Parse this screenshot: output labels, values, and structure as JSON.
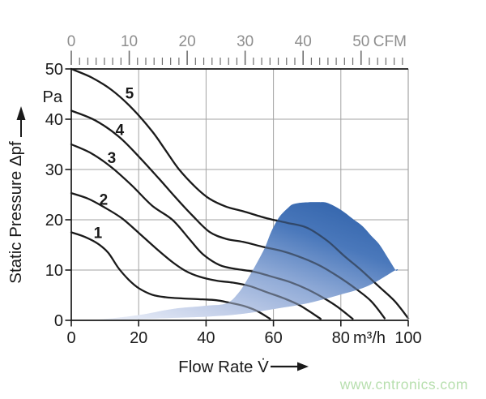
{
  "watermark": "www.cntronics.com",
  "chart_data": {
    "type": "line",
    "title": "",
    "x_axis": {
      "title": "Flow Rate V̇",
      "unit": "m³/h",
      "min": 0,
      "max": 100,
      "ticks": [
        0,
        20,
        40,
        60,
        80,
        100
      ]
    },
    "y_axis": {
      "title": "Static Pressure Δpf",
      "unit": "Pa",
      "min": 0,
      "max": 50,
      "ticks": [
        0,
        10,
        20,
        30,
        40,
        50
      ]
    },
    "top_axis": {
      "unit": "CFM",
      "major_labels": [
        "0",
        "10",
        "20",
        "30",
        "40",
        "50"
      ],
      "m3h_per_cfm": 1.72,
      "subdivisions_per_major": 7,
      "minor_tick_count": 41
    },
    "grid": true,
    "legend_position": "none",
    "series": [
      {
        "name": "1",
        "label_pos": [
          7.9,
          17.4
        ],
        "points": [
          [
            0,
            17.5
          ],
          [
            4,
            16.6
          ],
          [
            8,
            15.2
          ],
          [
            11,
            13.4
          ],
          [
            14,
            10.4
          ],
          [
            17,
            8.1
          ],
          [
            20,
            6.4
          ],
          [
            24,
            5.1
          ],
          [
            28,
            4.6
          ],
          [
            33,
            4.35
          ],
          [
            38,
            4.2
          ],
          [
            43,
            4.0
          ],
          [
            47,
            3.5
          ],
          [
            51,
            2.9
          ],
          [
            55,
            1.9
          ],
          [
            59,
            0.3
          ]
        ]
      },
      {
        "name": "2",
        "label_pos": [
          9.6,
          24.0
        ],
        "points": [
          [
            0,
            25.3
          ],
          [
            5,
            24.2
          ],
          [
            10,
            22.4
          ],
          [
            15,
            20.3
          ],
          [
            20,
            17.4
          ],
          [
            25,
            14.4
          ],
          [
            30,
            11.6
          ],
          [
            34,
            9.8
          ],
          [
            38,
            8.7
          ],
          [
            43,
            7.9
          ],
          [
            48,
            7.5
          ],
          [
            53,
            6.8
          ],
          [
            58,
            5.6
          ],
          [
            63,
            4.4
          ],
          [
            68,
            2.9
          ],
          [
            74,
            0.3
          ]
        ]
      },
      {
        "name": "3",
        "label_pos": [
          12.0,
          32.3
        ],
        "points": [
          [
            0,
            35
          ],
          [
            6,
            33.2
          ],
          [
            12,
            30.4
          ],
          [
            18,
            26.8
          ],
          [
            24,
            22.8
          ],
          [
            30,
            20.0
          ],
          [
            35,
            16.2
          ],
          [
            39,
            13.2
          ],
          [
            44,
            11.0
          ],
          [
            49,
            10.2
          ],
          [
            54,
            9.7
          ],
          [
            60,
            8.6
          ],
          [
            65,
            7.6
          ],
          [
            70,
            6.2
          ],
          [
            75,
            4.4
          ],
          [
            79,
            2.7
          ],
          [
            83.5,
            0.3
          ]
        ]
      },
      {
        "name": "4",
        "label_pos": [
          14.4,
          37.9
        ],
        "points": [
          [
            0,
            41.7
          ],
          [
            7,
            39.8
          ],
          [
            14,
            36.6
          ],
          [
            20,
            32.6
          ],
          [
            26,
            28.2
          ],
          [
            31,
            24.4
          ],
          [
            36,
            20.8
          ],
          [
            41,
            17.6
          ],
          [
            46,
            16.2
          ],
          [
            51,
            15.6
          ],
          [
            57,
            14.6
          ],
          [
            63,
            13.7
          ],
          [
            69,
            12.3
          ],
          [
            74,
            10.8
          ],
          [
            79,
            8.8
          ],
          [
            84,
            6.5
          ],
          [
            89,
            3.8
          ],
          [
            93,
            0.4
          ]
        ]
      },
      {
        "name": "5",
        "label_pos": [
          17.3,
          45.2
        ],
        "points": [
          [
            0,
            50
          ],
          [
            6,
            48.3
          ],
          [
            12,
            45.8
          ],
          [
            18,
            42.2
          ],
          [
            24,
            37.6
          ],
          [
            28,
            33.8
          ],
          [
            32,
            30.0
          ],
          [
            37,
            26.4
          ],
          [
            41,
            24.2
          ],
          [
            46,
            22.6
          ],
          [
            51,
            21.7
          ],
          [
            58,
            20.3
          ],
          [
            64,
            19.4
          ],
          [
            70,
            18.4
          ],
          [
            76,
            15.8
          ],
          [
            81,
            12.8
          ],
          [
            86,
            10.0
          ],
          [
            91,
            6.9
          ],
          [
            96,
            3.8
          ],
          [
            100,
            0.4
          ]
        ]
      }
    ],
    "operating_region": {
      "description": "shaded operating area, light at lower-left tail to dark blue at upper right",
      "points": [
        [
          7.7,
          0.1
        ],
        [
          19.7,
          1.0
        ],
        [
          30.5,
          2.3
        ],
        [
          40.1,
          2.9
        ],
        [
          46.2,
          3.4
        ],
        [
          49.8,
          5.6
        ],
        [
          52.6,
          8.5
        ],
        [
          55.0,
          11.3
        ],
        [
          57.5,
          14.5
        ],
        [
          59.4,
          17.7
        ],
        [
          61.8,
          20.6
        ],
        [
          64.4,
          22.4
        ],
        [
          65.9,
          23.1
        ],
        [
          68.5,
          23.4
        ],
        [
          71.4,
          23.5
        ],
        [
          73.6,
          23.5
        ],
        [
          75.7,
          23.4
        ],
        [
          78.4,
          22.6
        ],
        [
          81.0,
          21.5
        ],
        [
          83.9,
          20.0
        ],
        [
          86.5,
          18.7
        ],
        [
          88.9,
          16.9
        ],
        [
          91.3,
          15.2
        ],
        [
          93.5,
          12.9
        ],
        [
          96.2,
          10.0
        ],
        [
          96.2,
          10.0
        ],
        [
          88.2,
          6.9
        ],
        [
          80.3,
          5.2
        ],
        [
          70.2,
          3.4
        ],
        [
          60.6,
          2.3
        ],
        [
          51.0,
          1.3
        ],
        [
          42.1,
          0.8
        ],
        [
          30.5,
          0.5
        ],
        [
          19.7,
          0.24
        ],
        [
          7.7,
          0.1
        ]
      ]
    },
    "colors": {
      "curve": "#1a1a1a",
      "axis": "#1a1a1a",
      "grid": "#a3a3a3",
      "muted_labels": "#8e8e8e",
      "ruler_ticks": "#6f6f6f",
      "region_light": "#eef1f9",
      "region_mid1": "#c3cfe9",
      "region_mid2": "#8ea9d6",
      "region_mid3": "#4a78bb",
      "region_dark": "#2f61a9",
      "watermark": "#b7dfae"
    }
  }
}
